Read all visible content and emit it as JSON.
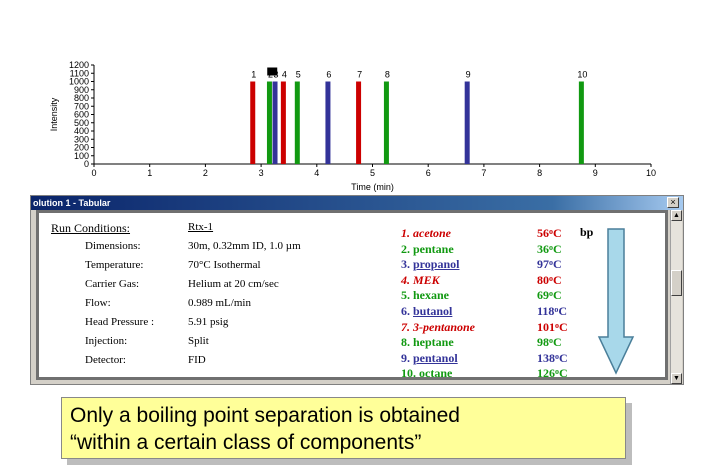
{
  "chart_data": {
    "type": "bar",
    "xlabel": "Time (min)",
    "ylabel": "Intensity",
    "xlim": [
      0,
      10
    ],
    "ylim": [
      0,
      1200
    ],
    "x_ticks": [
      "0",
      "1",
      "2",
      "3",
      "4",
      "5",
      "6",
      "7",
      "8",
      "9",
      "10"
    ],
    "y_ticks": [
      "0",
      "100",
      "200",
      "300",
      "400",
      "500",
      "600",
      "700",
      "800",
      "900",
      "1000",
      "1100",
      "1200"
    ],
    "peaks": [
      {
        "label": "1",
        "x": 2.85,
        "y": 1000,
        "color": "#cc0000"
      },
      {
        "label": "2",
        "x": 3.15,
        "y": 1000,
        "color": "#119911"
      },
      {
        "label": "3",
        "x": 3.25,
        "y": 1000,
        "color": "#333399"
      },
      {
        "label": "4",
        "x": 3.4,
        "y": 1000,
        "color": "#cc0000"
      },
      {
        "label": "5",
        "x": 3.65,
        "y": 1000,
        "color": "#119911"
      },
      {
        "label": "6",
        "x": 4.2,
        "y": 1000,
        "color": "#333399"
      },
      {
        "label": "7",
        "x": 4.75,
        "y": 1000,
        "color": "#cc0000"
      },
      {
        "label": "8",
        "x": 5.25,
        "y": 1000,
        "color": "#119911"
      },
      {
        "label": "9",
        "x": 6.7,
        "y": 1000,
        "color": "#333399"
      },
      {
        "label": "10",
        "x": 8.75,
        "y": 1000,
        "color": "#119911"
      }
    ]
  },
  "window": {
    "title": "olution 1 - Tabular",
    "close_symbol": "×",
    "scroll_up_symbol": "▲",
    "scroll_down_symbol": "▼"
  },
  "conditions": {
    "title": "Run Conditions:",
    "column": "Rtx-1",
    "rows": [
      {
        "label": "Dimensions:",
        "value": "30m, 0.32mm ID, 1.0 µm"
      },
      {
        "label": "Temperature:",
        "value": "70°C Isothermal"
      },
      {
        "label": "Carrier Gas:",
        "value": "Helium at 20 cm/sec"
      },
      {
        "label": "Flow:",
        "value": "0.989 mL/min"
      },
      {
        "label": "Head Pressure :",
        "value": "5.91 psig"
      },
      {
        "label": "Injection:",
        "value": "Split"
      },
      {
        "label": "Detector:",
        "value": "FID"
      }
    ]
  },
  "components": [
    {
      "name": "1. acetone",
      "bp": "56",
      "class": "red italic"
    },
    {
      "name": "2. pentane",
      "bp": "36",
      "class": "green"
    },
    {
      "name": "3. propanol",
      "bp": "97",
      "class": "blue ul"
    },
    {
      "name": "4. MEK",
      "bp": "80",
      "class": "red italic"
    },
    {
      "name": "5. hexane",
      "bp": "69",
      "class": "green"
    },
    {
      "name": "6. butanol",
      "bp": "118",
      "class": "blue ul"
    },
    {
      "name": "7. 3-pentanone",
      "bp": "101",
      "class": "red italic"
    },
    {
      "name": "8. heptane",
      "bp": "98",
      "class": "green"
    },
    {
      "name": "9. pentanol",
      "bp": "138",
      "class": "blue ul"
    },
    {
      "name": "10. octane",
      "bp": "126",
      "class": "green"
    }
  ],
  "degree_symbol": "o",
  "bp_unit": "C",
  "bp_label": "bp",
  "caption": {
    "line1": "Only a boiling point separation is obtained",
    "line2": "“within a certain class of components”"
  },
  "colors": {
    "red": "#cc0000",
    "green": "#119911",
    "blue": "#333399",
    "caption_bg": "#ffff99",
    "arrow": "#a8d8ea"
  }
}
